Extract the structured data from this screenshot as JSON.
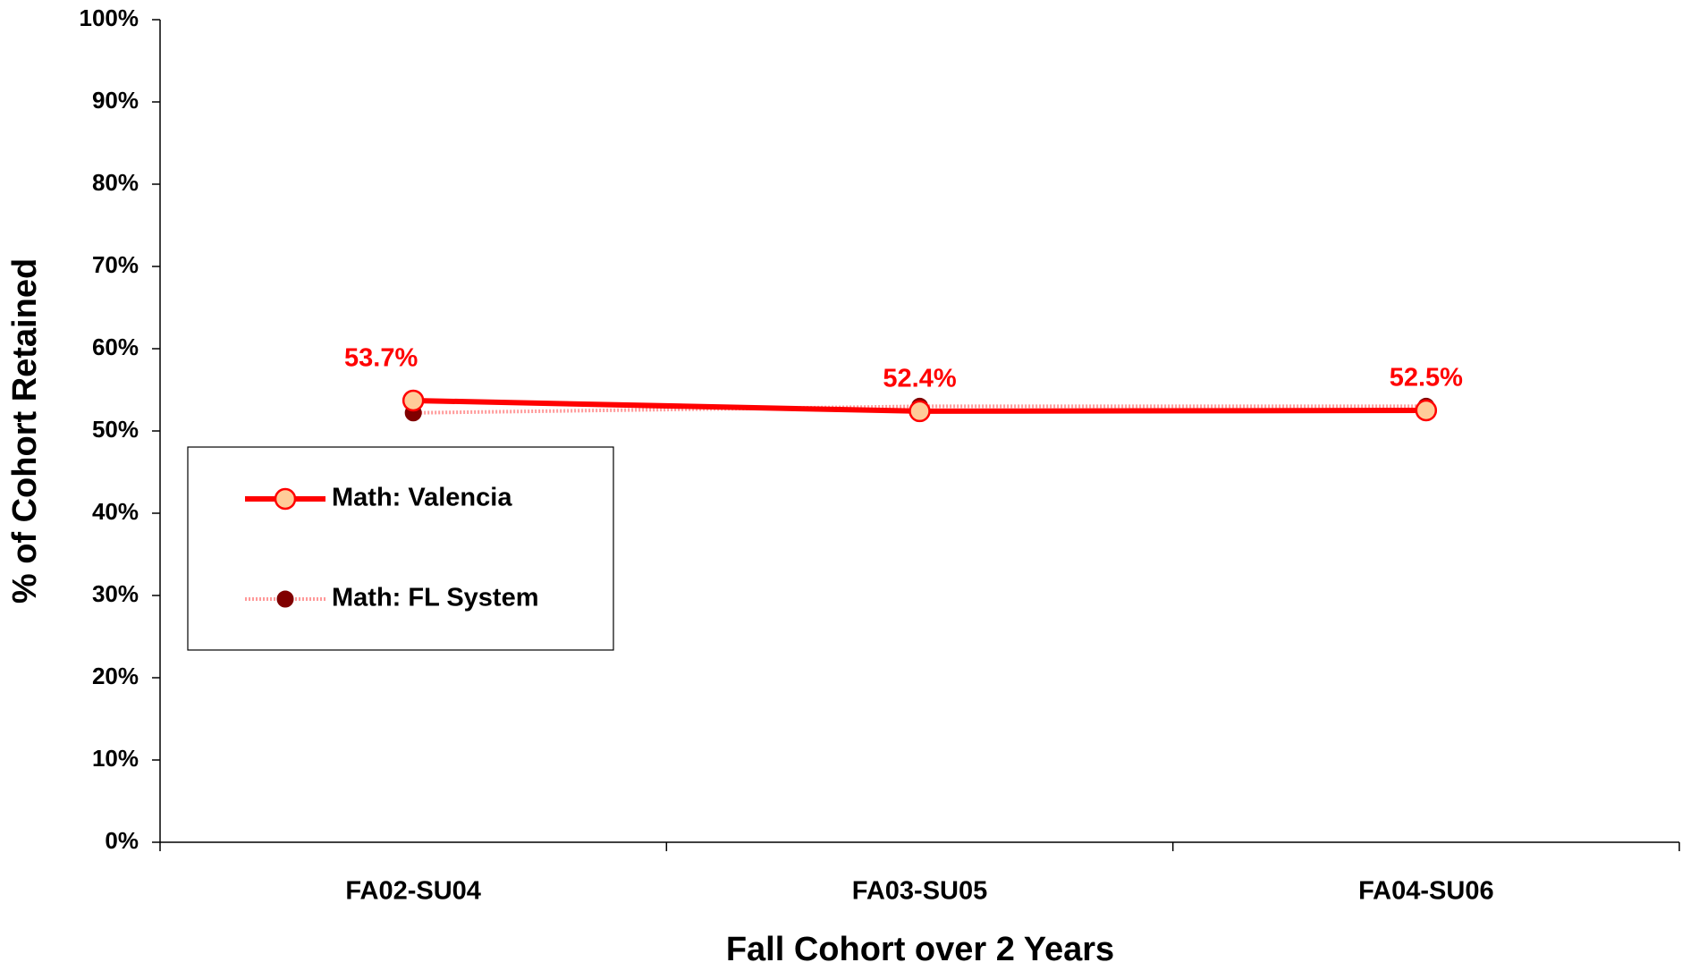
{
  "chart_data": {
    "type": "line",
    "x_label": "Fall Cohort over 2 Years",
    "y_label": "% of Cohort Retained",
    "categories": [
      "FA02-SU04",
      "FA03-SU05",
      "FA04-SU06"
    ],
    "series": [
      {
        "name": "Math: Valencia",
        "color": "#ff0000",
        "marker_color": "#ffcc99",
        "values": [
          53.7,
          52.4,
          52.5
        ],
        "value_labels": [
          "53.7%",
          "52.4%",
          "52.5%"
        ]
      },
      {
        "name": "Math: FL System",
        "color": "#ff9999",
        "marker_color": "#800000",
        "values": [
          52.2,
          53.0,
          53.0
        ]
      }
    ],
    "ylim": [
      0,
      100
    ],
    "yticks": [
      {
        "value": 0,
        "label": "0%"
      },
      {
        "value": 10,
        "label": "10%"
      },
      {
        "value": 20,
        "label": "20%"
      },
      {
        "value": 30,
        "label": "30%"
      },
      {
        "value": 40,
        "label": "40%"
      },
      {
        "value": 50,
        "label": "50%"
      },
      {
        "value": 60,
        "label": "60%"
      },
      {
        "value": 70,
        "label": "70%"
      },
      {
        "value": 80,
        "label": "80%"
      },
      {
        "value": 90,
        "label": "90%"
      },
      {
        "value": 100,
        "label": "100%"
      }
    ],
    "grid": false,
    "legend": "left"
  }
}
